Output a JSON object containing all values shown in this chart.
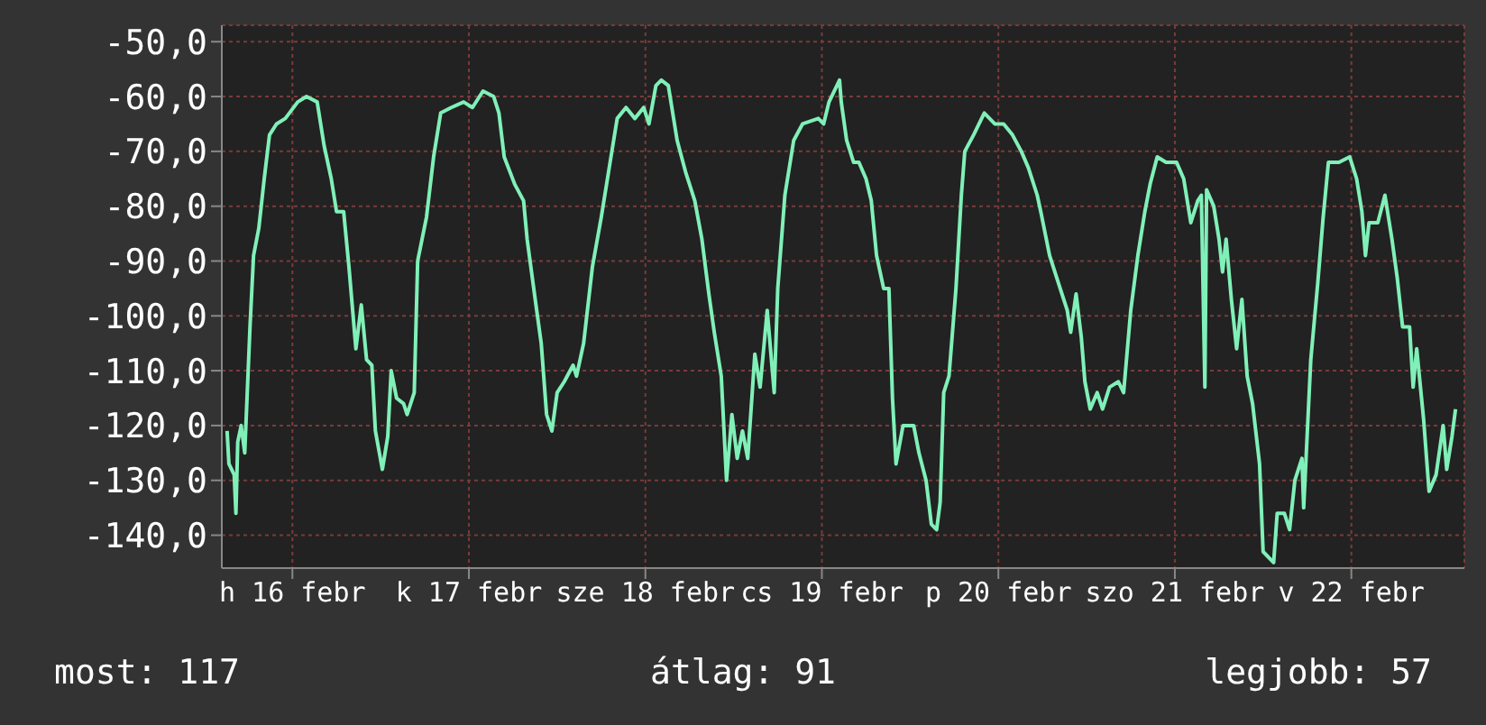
{
  "chart_data": {
    "type": "line",
    "xlim": [
      "--02-16T02:24",
      "--02-23T03:22"
    ],
    "ylim": [
      -146,
      -47
    ],
    "xticks": [
      {
        "value": "--02-16T12:00",
        "label": "h 16 febr"
      },
      {
        "value": "--02-17T12:00",
        "label": "k 17 febr"
      },
      {
        "value": "--02-18T12:00",
        "label": "sze 18 febr"
      },
      {
        "value": "--02-19T12:00",
        "label": "cs 19 febr"
      },
      {
        "value": "--02-20T12:00",
        "label": "p 20 febr"
      },
      {
        "value": "--02-21T12:00",
        "label": "szo 21 febr"
      },
      {
        "value": "--02-22T12:00",
        "label": "v 22 febr"
      }
    ],
    "yticks": [
      {
        "value": -50,
        "label": "-50,0"
      },
      {
        "value": -60,
        "label": "-60,0"
      },
      {
        "value": -70,
        "label": "-70,0"
      },
      {
        "value": -80,
        "label": "-80,0"
      },
      {
        "value": -90,
        "label": "-90,0"
      },
      {
        "value": -100,
        "label": "-100,0"
      },
      {
        "value": -110,
        "label": "-110,0"
      },
      {
        "value": -120,
        "label": "-120,0"
      },
      {
        "value": -130,
        "label": "-130,0"
      },
      {
        "value": -140,
        "label": "-140,0"
      }
    ],
    "grid": true,
    "annotations": [
      "most: 117",
      "átlag: 91",
      "legjobb: 57"
    ],
    "x": [
      "--02-16T03:07",
      "--02-16T03:22",
      "--02-16T04:05",
      "--02-16T04:19",
      "--02-16T04:34",
      "--02-16T05:02",
      "--02-16T05:31",
      "--02-16T06:14",
      "--02-16T06:43",
      "--02-16T07:26",
      "--02-16T08:10",
      "--02-16T08:53",
      "--02-16T09:50",
      "--02-16T11:02",
      "--02-16T12:43",
      "--02-16T13:55",
      "--02-16T15:22",
      "--02-16T16:19",
      "--02-16T17:17",
      "--02-16T18:00",
      "--02-16T18:58",
      "--02-16T19:41",
      "--02-16T20:38",
      "--02-16T21:22",
      "--02-16T22:05",
      "--02-16T22:48",
      "--02-16T23:17",
      "--02-17T00:14",
      "--02-17T00:58",
      "--02-17T01:26",
      "--02-17T02:10",
      "--02-17T03:07",
      "--02-17T03:36",
      "--02-17T04:34",
      "--02-17T05:02",
      "--02-17T06:14",
      "--02-17T07:12",
      "--02-17T08:10",
      "--02-17T09:36",
      "--02-17T11:17",
      "--02-17T12:29",
      "--02-17T13:55",
      "--02-17T15:22",
      "--02-17T16:05",
      "--02-17T16:48",
      "--02-17T18:14",
      "--02-17T19:26",
      "--02-17T19:55",
      "--02-17T21:07",
      "--02-17T21:50",
      "--02-17T22:34",
      "--02-17T23:17",
      "--02-18T00:00",
      "--02-18T00:58",
      "--02-18T02:10",
      "--02-18T02:38",
      "--02-18T03:36",
      "--02-18T04:48",
      "--02-18T06:00",
      "--02-18T07:12",
      "--02-18T08:10",
      "--02-18T09:22",
      "--02-18T10:34",
      "--02-18T11:46",
      "--02-18T12:29",
      "--02-18T13:26",
      "--02-18T14:10",
      "--02-18T15:07",
      "--02-18T16:19",
      "--02-18T17:31",
      "--02-18T18:43",
      "--02-18T19:41",
      "--02-18T20:38",
      "--02-18T21:22",
      "--02-18T22:19",
      "--02-18T23:02",
      "--02-18T23:46",
      "--02-19T00:29",
      "--02-19T01:12",
      "--02-19T01:55",
      "--02-19T02:53",
      "--02-19T03:36",
      "--02-19T04:34",
      "--02-19T05:31",
      "--02-19T06:00",
      "--02-19T06:58",
      "--02-19T08:10",
      "--02-19T09:22",
      "--02-19T11:31",
      "--02-19T12:14",
      "--02-19T12:58",
      "--02-19T14:24",
      "--02-19T14:38",
      "--02-19T15:22",
      "--02-19T16:19",
      "--02-19T17:02",
      "--02-19T18:00",
      "--02-19T18:43",
      "--02-19T19:26",
      "--02-19T20:24",
      "--02-19T21:07",
      "--02-19T21:36",
      "--02-19T22:05",
      "--02-19T23:02",
      "--02-20T00:29",
      "--02-20T01:12",
      "--02-20T02:10",
      "--02-20T02:53",
      "--02-20T03:36",
      "--02-20T04:05",
      "--02-20T04:34",
      "--02-20T05:17",
      "--02-20T06:14",
      "--02-20T06:58",
      "--02-20T07:26",
      "--02-20T08:38",
      "--02-20T10:05",
      "--02-20T11:31",
      "--02-20T12:43",
      "--02-20T13:55",
      "--02-20T15:07",
      "--02-20T16:05",
      "--02-20T17:17",
      "--02-20T17:46",
      "--02-20T18:58",
      "--02-20T20:10",
      "--02-20T21:22",
      "--02-20T21:50",
      "--02-20T22:34",
      "--02-20T23:17",
      "--02-20T23:46",
      "--02-21T00:29",
      "--02-21T01:26",
      "--02-21T02:10",
      "--02-21T03:07",
      "--02-21T04:19",
      "--02-21T05:02",
      "--02-21T06:00",
      "--02-21T06:58",
      "--02-21T07:55",
      "--02-21T08:38",
      "--02-21T09:36",
      "--02-21T10:48",
      "--02-21T12:14",
      "--02-21T13:12",
      "--02-21T14:10",
      "--02-21T15:07",
      "--02-21T15:36",
      "--02-21T16:05",
      "--02-21T16:19",
      "--02-21T17:17",
      "--02-21T18:00",
      "--02-21T18:29",
      "--02-21T18:58",
      "--02-21T19:41",
      "--02-21T20:24",
      "--02-21T21:07",
      "--02-21T21:50",
      "--02-21T22:34",
      "--02-21T23:31",
      "--02-22T00:00",
      "--02-22T01:26",
      "--02-22T01:55",
      "--02-22T02:53",
      "--02-22T03:36",
      "--02-22T04:19",
      "--02-22T05:17",
      "--02-22T05:31",
      "--02-22T06:29",
      "--02-22T07:26",
      "--02-22T08:10",
      "--02-22T08:53",
      "--02-22T10:19",
      "--02-22T11:46",
      "--02-22T12:43",
      "--02-22T13:26",
      "--02-22T13:55",
      "--02-22T14:24",
      "--02-22T15:36",
      "--02-22T16:34",
      "--02-22T17:31",
      "--02-22T18:14",
      "--02-22T18:58",
      "--02-22T19:55",
      "--02-22T20:24",
      "--02-22T20:53",
      "--02-22T21:50",
      "--02-22T22:34",
      "--02-22T23:31",
      "--02-23T00:29",
      "--02-23T00:58",
      "--02-23T01:41",
      "--02-23T02:10"
    ],
    "series": [
      {
        "color": "#80f0b8",
        "values": [
          -121,
          -127,
          -129,
          -136,
          -123,
          -120,
          -125,
          -102,
          -89,
          -84,
          -75,
          -67,
          -65,
          -64,
          -61,
          -60,
          -61,
          -69,
          -75,
          -81,
          -81,
          -91,
          -106,
          -98,
          -108,
          -109,
          -121,
          -128,
          -122,
          -110,
          -115,
          -116,
          -118,
          -114,
          -90,
          -82,
          -71,
          -63,
          -62,
          -61,
          -62,
          -59,
          -60,
          -63,
          -71,
          -76,
          -79,
          -86,
          -98,
          -105,
          -118,
          -121,
          -114,
          -112,
          -109,
          -111,
          -105,
          -91,
          -82,
          -72,
          -64,
          -62,
          -64,
          -62,
          -65,
          -58,
          -57,
          -58,
          -68,
          -74,
          -79,
          -86,
          -96,
          -103,
          -111,
          -130,
          -118,
          -126,
          -121,
          -126,
          -107,
          -113,
          -99,
          -114,
          -95,
          -78,
          -68,
          -65,
          -64,
          -65,
          -61,
          -57,
          -61,
          -68,
          -72,
          -72,
          -75,
          -79,
          -89,
          -95,
          -95,
          -115,
          -127,
          -120,
          -120,
          -125,
          -130,
          -138,
          -139,
          -134,
          -114,
          -111,
          -95,
          -78,
          -70,
          -67,
          -63,
          -65,
          -65,
          -67,
          -70,
          -73,
          -78,
          -81,
          -89,
          -94,
          -99,
          -103,
          -96,
          -104,
          -112,
          -117,
          -114,
          -117,
          -113,
          -112,
          -114,
          -99,
          -89,
          -81,
          -76,
          -71,
          -72,
          -72,
          -75,
          -83,
          -79,
          -78,
          -113,
          -77,
          -80,
          -86,
          -92,
          -86,
          -97,
          -106,
          -97,
          -111,
          -116,
          -127,
          -143,
          -145,
          -136,
          -136,
          -139,
          -130,
          -126,
          -135,
          -108,
          -94,
          -82,
          -72,
          -72,
          -71,
          -75,
          -81,
          -89,
          -83,
          -83,
          -78,
          -86,
          -93,
          -102,
          -102,
          -113,
          -106,
          -119,
          -132,
          -129,
          -120,
          -128,
          -122,
          -117
        ]
      }
    ]
  }
}
